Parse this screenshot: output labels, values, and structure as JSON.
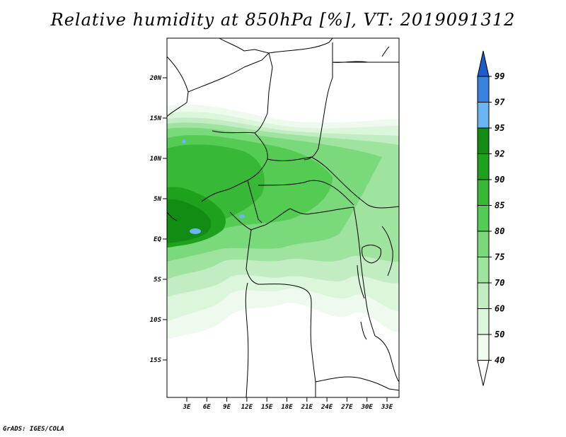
{
  "title": "Relative humidity at 850hPa [%], VT: 2019091312",
  "credit": "GrADS: IGES/COLA",
  "lat_labels": [
    "20N",
    "15N",
    "10N",
    "5N",
    "EQ",
    "5S",
    "10S",
    "15S"
  ],
  "lon_labels": [
    "3E",
    "6E",
    "9E",
    "12E",
    "15E",
    "18E",
    "21E",
    "24E",
    "27E",
    "30E",
    "33E"
  ],
  "legend": {
    "labels": [
      "99",
      "97",
      "95",
      "92",
      "90",
      "85",
      "80",
      "75",
      "70",
      "60",
      "50",
      "40"
    ],
    "colors": [
      "#1e5bc8",
      "#3a82e0",
      "#6ab4f0",
      "#128c12",
      "#1ea21e",
      "#37b837",
      "#54cc54",
      "#7ad97a",
      "#9ee39e",
      "#c2edc2",
      "#dcf6dc",
      "#f0fcf0"
    ]
  },
  "colors": {
    "land": "#ffffff",
    "border": "#000000"
  }
}
